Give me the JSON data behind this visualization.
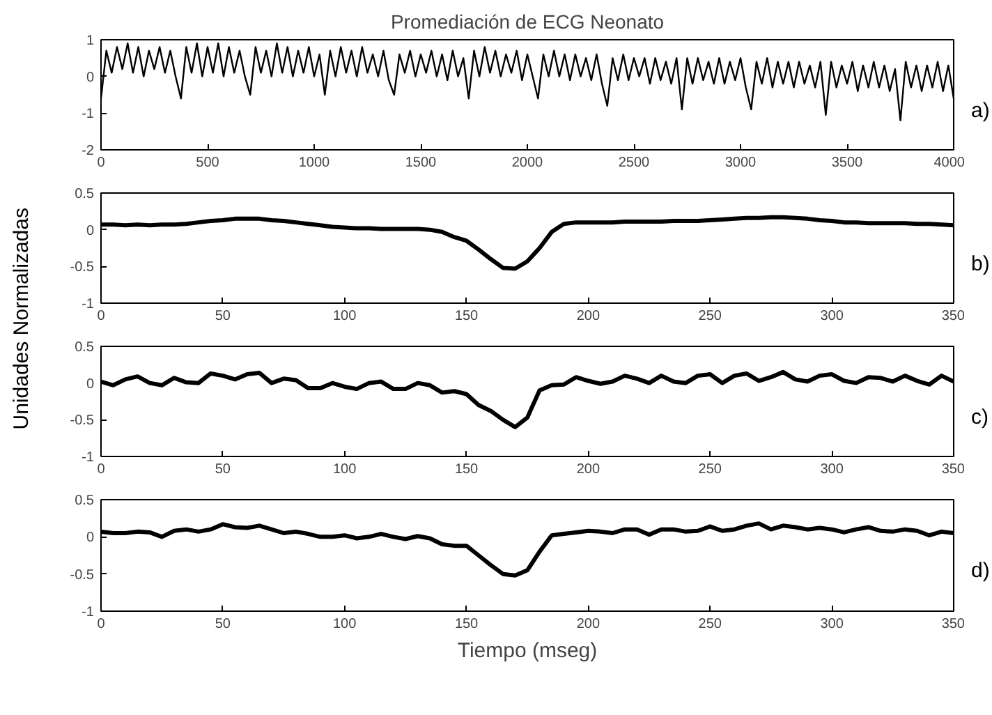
{
  "chart_data": [
    {
      "type": "line",
      "title": "Promediación de ECG Neonato",
      "ylabel": "Unidades Normalizadas",
      "annotations": [
        "a)"
      ],
      "xlim": [
        0,
        4000
      ],
      "xticks": [
        0,
        500,
        1000,
        1500,
        2000,
        2500,
        3000,
        3500,
        4000
      ],
      "ylim": [
        -2,
        1
      ],
      "yticks": [
        -2,
        -1,
        0,
        1
      ],
      "grid": false,
      "line_style": "solid",
      "series": [
        {
          "color": "#000000",
          "x": [
            0,
            25,
            50,
            75,
            100,
            125,
            150,
            175,
            200,
            225,
            250,
            275,
            300,
            325,
            350,
            375,
            400,
            425,
            450,
            475,
            500,
            525,
            550,
            575,
            600,
            625,
            650,
            675,
            700,
            725,
            750,
            775,
            800,
            825,
            850,
            875,
            900,
            925,
            950,
            975,
            1000,
            1025,
            1050,
            1075,
            1100,
            1125,
            1150,
            1175,
            1200,
            1225,
            1250,
            1275,
            1300,
            1325,
            1350,
            1375,
            1400,
            1425,
            1450,
            1475,
            1500,
            1525,
            1550,
            1575,
            1600,
            1625,
            1650,
            1675,
            1700,
            1725,
            1750,
            1775,
            1800,
            1825,
            1850,
            1875,
            1900,
            1925,
            1950,
            1975,
            2000,
            2025,
            2050,
            2075,
            2100,
            2125,
            2150,
            2175,
            2200,
            2225,
            2250,
            2275,
            2300,
            2325,
            2350,
            2375,
            2400,
            2425,
            2450,
            2475,
            2500,
            2525,
            2550,
            2575,
            2600,
            2625,
            2650,
            2675,
            2700,
            2725,
            2750,
            2775,
            2800,
            2825,
            2850,
            2875,
            2900,
            2925,
            2950,
            2975,
            3000,
            3025,
            3050,
            3075,
            3100,
            3125,
            3150,
            3175,
            3200,
            3225,
            3250,
            3275,
            3300,
            3325,
            3350,
            3375,
            3400,
            3425,
            3450,
            3475,
            3500,
            3525,
            3550,
            3575,
            3600,
            3625,
            3650,
            3675,
            3700,
            3725,
            3750,
            3775,
            3800,
            3825,
            3850,
            3875,
            3900,
            3925,
            3950,
            3975,
            4000
          ],
          "values": [
            -0.6,
            0.7,
            0.1,
            0.8,
            0.2,
            0.9,
            0.1,
            0.8,
            0.0,
            0.7,
            0.2,
            0.8,
            0.1,
            0.7,
            0.0,
            -0.6,
            0.8,
            0.1,
            0.9,
            0.0,
            0.8,
            0.1,
            0.9,
            0.0,
            0.8,
            0.1,
            0.7,
            0.0,
            -0.5,
            0.8,
            0.1,
            0.7,
            0.0,
            0.9,
            0.1,
            0.8,
            0.0,
            0.7,
            0.1,
            0.8,
            0.0,
            0.6,
            -0.5,
            0.7,
            0.0,
            0.8,
            0.1,
            0.7,
            0.0,
            0.8,
            0.1,
            0.6,
            0.0,
            0.7,
            -0.1,
            -0.5,
            0.6,
            0.1,
            0.7,
            0.0,
            0.6,
            0.1,
            0.7,
            0.0,
            0.6,
            -0.1,
            0.7,
            0.0,
            0.5,
            -0.6,
            0.7,
            0.0,
            0.8,
            0.1,
            0.7,
            0.0,
            0.6,
            0.1,
            0.7,
            -0.1,
            0.6,
            0.0,
            -0.6,
            0.6,
            0.0,
            0.7,
            0.0,
            0.6,
            -0.1,
            0.6,
            0.0,
            0.5,
            -0.1,
            0.6,
            -0.2,
            -0.8,
            0.5,
            -0.1,
            0.6,
            -0.1,
            0.5,
            0.0,
            0.5,
            -0.2,
            0.5,
            -0.1,
            0.4,
            -0.2,
            0.5,
            -0.9,
            0.5,
            -0.2,
            0.5,
            -0.1,
            0.4,
            -0.2,
            0.5,
            -0.2,
            0.4,
            -0.1,
            0.5,
            -0.3,
            -0.9,
            0.4,
            -0.2,
            0.5,
            -0.3,
            0.4,
            -0.2,
            0.4,
            -0.3,
            0.4,
            -0.2,
            0.3,
            -0.3,
            0.4,
            -1.05,
            0.4,
            -0.3,
            0.3,
            -0.2,
            0.4,
            -0.4,
            0.3,
            -0.3,
            0.4,
            -0.3,
            0.3,
            -0.4,
            0.2,
            -1.2,
            0.4,
            -0.3,
            0.3,
            -0.4,
            0.3,
            -0.3,
            0.4,
            -0.4,
            0.3,
            -0.6
          ]
        }
      ]
    },
    {
      "type": "line",
      "annotations": [
        "b)"
      ],
      "xlim": [
        0,
        350
      ],
      "xticks": [
        0,
        50,
        100,
        150,
        200,
        250,
        300,
        350
      ],
      "ylim": [
        -1,
        0.5
      ],
      "yticks": [
        -1,
        -0.5,
        0,
        0.5
      ],
      "grid": false,
      "line_style": "solid",
      "series": [
        {
          "color": "#000000",
          "x": [
            0,
            5,
            10,
            15,
            20,
            25,
            30,
            35,
            40,
            45,
            50,
            55,
            60,
            65,
            70,
            75,
            80,
            85,
            90,
            95,
            100,
            105,
            110,
            115,
            120,
            125,
            130,
            135,
            140,
            145,
            150,
            155,
            160,
            165,
            170,
            175,
            180,
            185,
            190,
            195,
            200,
            205,
            210,
            215,
            220,
            225,
            230,
            235,
            240,
            245,
            250,
            255,
            260,
            265,
            270,
            275,
            280,
            285,
            290,
            295,
            300,
            305,
            310,
            315,
            320,
            325,
            330,
            335,
            340,
            345,
            350
          ],
          "values": [
            0.07,
            0.07,
            0.06,
            0.07,
            0.06,
            0.07,
            0.07,
            0.08,
            0.1,
            0.12,
            0.13,
            0.15,
            0.15,
            0.15,
            0.13,
            0.12,
            0.1,
            0.08,
            0.06,
            0.04,
            0.03,
            0.02,
            0.02,
            0.01,
            0.01,
            0.01,
            0.01,
            0.0,
            -0.03,
            -0.1,
            -0.15,
            -0.27,
            -0.4,
            -0.52,
            -0.53,
            -0.43,
            -0.25,
            -0.03,
            0.08,
            0.1,
            0.1,
            0.1,
            0.1,
            0.11,
            0.11,
            0.11,
            0.11,
            0.12,
            0.12,
            0.12,
            0.13,
            0.14,
            0.15,
            0.16,
            0.16,
            0.17,
            0.17,
            0.16,
            0.15,
            0.13,
            0.12,
            0.1,
            0.1,
            0.09,
            0.09,
            0.09,
            0.09,
            0.08,
            0.08,
            0.07,
            0.06
          ]
        }
      ]
    },
    {
      "type": "line",
      "annotations": [
        "c)"
      ],
      "xlim": [
        0,
        350
      ],
      "xticks": [
        0,
        50,
        100,
        150,
        200,
        250,
        300,
        350
      ],
      "ylim": [
        -1,
        0.5
      ],
      "yticks": [
        -1,
        -0.5,
        0,
        0.5
      ],
      "grid": false,
      "line_style": "solid",
      "series": [
        {
          "color": "#000000",
          "x": [
            0,
            5,
            10,
            15,
            20,
            25,
            30,
            35,
            40,
            45,
            50,
            55,
            60,
            65,
            70,
            75,
            80,
            85,
            90,
            95,
            100,
            105,
            110,
            115,
            120,
            125,
            130,
            135,
            140,
            145,
            150,
            155,
            160,
            165,
            170,
            175,
            180,
            185,
            190,
            195,
            200,
            205,
            210,
            215,
            220,
            225,
            230,
            235,
            240,
            245,
            250,
            255,
            260,
            265,
            270,
            275,
            280,
            285,
            290,
            295,
            300,
            305,
            310,
            315,
            320,
            325,
            330,
            335,
            340,
            345,
            350
          ],
          "values": [
            0.02,
            -0.03,
            0.05,
            0.09,
            0.0,
            -0.03,
            0.07,
            0.01,
            0.0,
            0.13,
            0.1,
            0.05,
            0.12,
            0.14,
            0.0,
            0.06,
            0.04,
            -0.07,
            -0.07,
            0.0,
            -0.05,
            -0.08,
            0.0,
            0.02,
            -0.08,
            -0.08,
            0.0,
            -0.03,
            -0.13,
            -0.11,
            -0.15,
            -0.3,
            -0.38,
            -0.5,
            -0.6,
            -0.47,
            -0.1,
            -0.03,
            -0.02,
            0.08,
            0.03,
            -0.01,
            0.02,
            0.1,
            0.06,
            0.0,
            0.1,
            0.02,
            0.0,
            0.1,
            0.12,
            0.0,
            0.1,
            0.13,
            0.03,
            0.08,
            0.15,
            0.05,
            0.02,
            0.1,
            0.12,
            0.03,
            0.0,
            0.08,
            0.07,
            0.02,
            0.1,
            0.03,
            -0.02,
            0.1,
            0.02
          ]
        }
      ]
    },
    {
      "type": "line",
      "xlabel": "Tiempo (mseg)",
      "annotations": [
        "d)"
      ],
      "xlim": [
        0,
        350
      ],
      "xticks": [
        0,
        50,
        100,
        150,
        200,
        250,
        300,
        350
      ],
      "ylim": [
        -1,
        0.5
      ],
      "yticks": [
        -1,
        -0.5,
        0,
        0.5
      ],
      "grid": false,
      "line_style": "solid",
      "series": [
        {
          "color": "#000000",
          "x": [
            0,
            5,
            10,
            15,
            20,
            25,
            30,
            35,
            40,
            45,
            50,
            55,
            60,
            65,
            70,
            75,
            80,
            85,
            90,
            95,
            100,
            105,
            110,
            115,
            120,
            125,
            130,
            135,
            140,
            145,
            150,
            155,
            160,
            165,
            170,
            175,
            180,
            185,
            190,
            195,
            200,
            205,
            210,
            215,
            220,
            225,
            230,
            235,
            240,
            245,
            250,
            255,
            260,
            265,
            270,
            275,
            280,
            285,
            290,
            295,
            300,
            305,
            310,
            315,
            320,
            325,
            330,
            335,
            340,
            345,
            350
          ],
          "values": [
            0.07,
            0.05,
            0.05,
            0.07,
            0.06,
            0.0,
            0.08,
            0.1,
            0.07,
            0.1,
            0.17,
            0.13,
            0.12,
            0.15,
            0.1,
            0.05,
            0.07,
            0.04,
            0.0,
            0.0,
            0.02,
            -0.02,
            0.0,
            0.04,
            0.0,
            -0.03,
            0.01,
            -0.02,
            -0.1,
            -0.12,
            -0.12,
            -0.25,
            -0.38,
            -0.5,
            -0.52,
            -0.45,
            -0.2,
            0.02,
            0.04,
            0.06,
            0.08,
            0.07,
            0.05,
            0.1,
            0.1,
            0.03,
            0.1,
            0.1,
            0.07,
            0.08,
            0.14,
            0.08,
            0.1,
            0.15,
            0.18,
            0.1,
            0.15,
            0.13,
            0.1,
            0.12,
            0.1,
            0.06,
            0.1,
            0.13,
            0.08,
            0.07,
            0.1,
            0.08,
            0.02,
            0.07,
            0.05
          ]
        }
      ]
    }
  ]
}
